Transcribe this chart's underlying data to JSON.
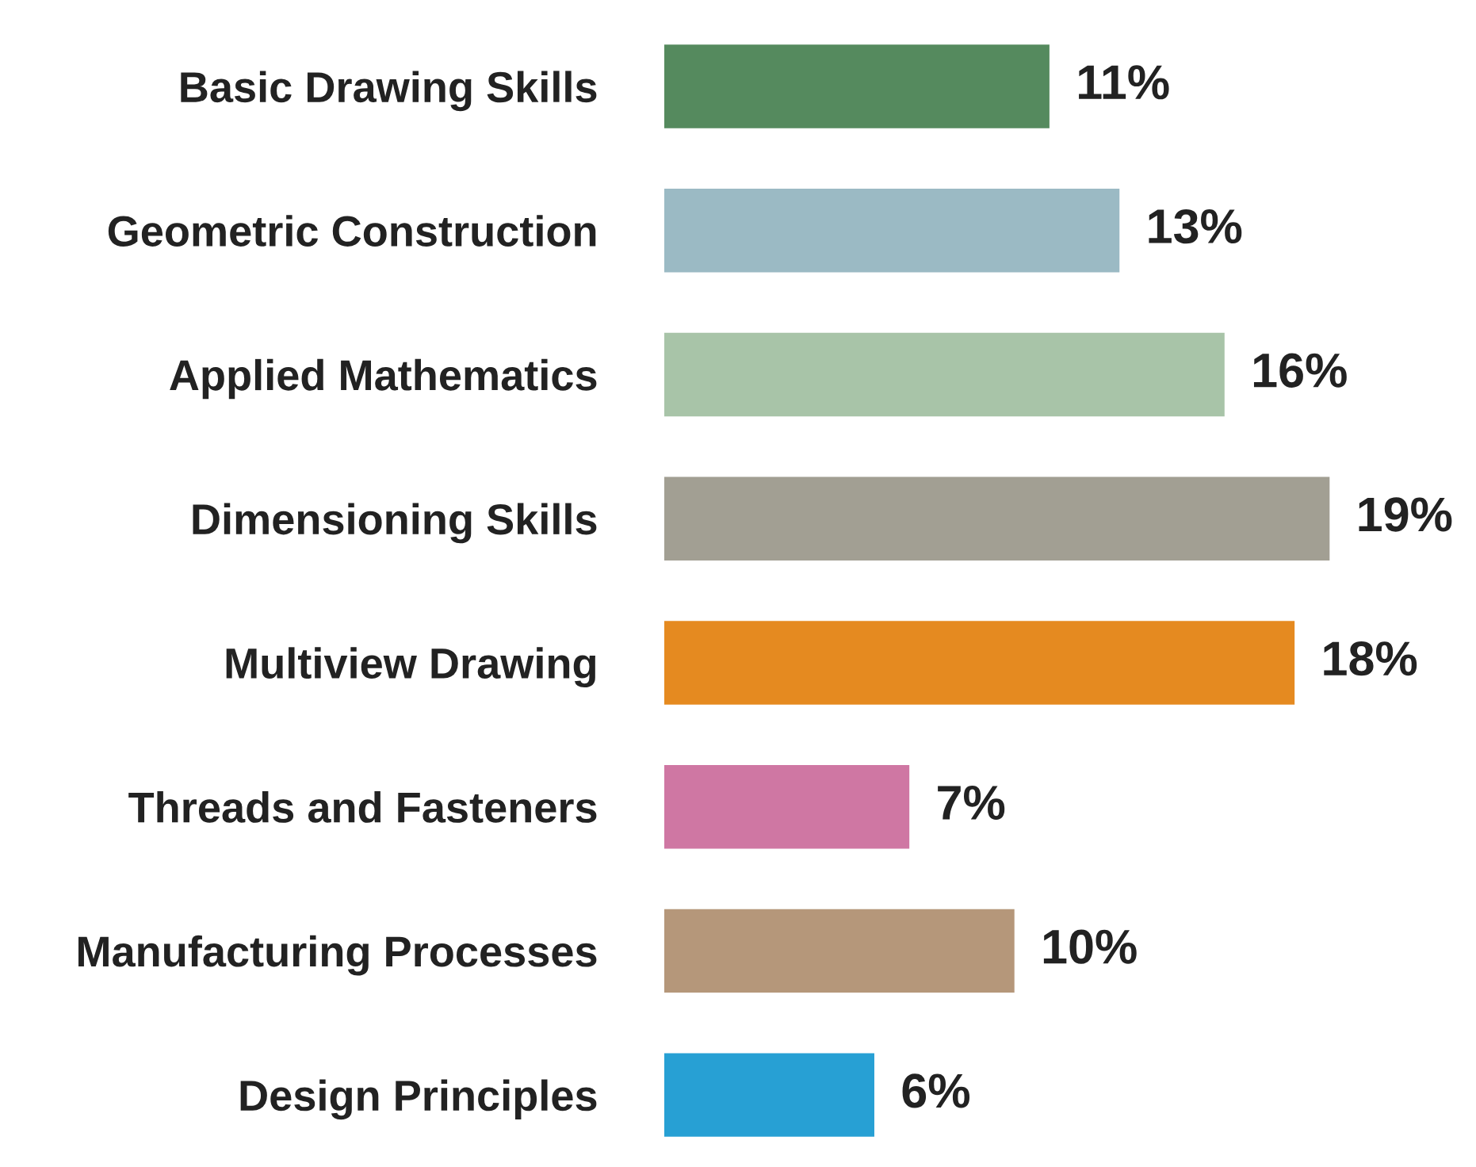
{
  "chart_data": {
    "type": "bar",
    "orientation": "horizontal",
    "categories": [
      "Basic Drawing Skills",
      "Geometric Construction",
      "Applied Mathematics",
      "Dimensioning Skills",
      "Multiview Drawing",
      "Threads and Fasteners",
      "Manufacturing Processes",
      "Design Principles"
    ],
    "values": [
      11,
      13,
      16,
      19,
      18,
      7,
      10,
      6
    ],
    "colors": [
      "#558a5e",
      "#9bbac4",
      "#a8c4a8",
      "#a29f93",
      "#e58a20",
      "#cf77a3",
      "#b5977a",
      "#27a0d4"
    ],
    "value_labels": [
      "11%",
      "13%",
      "16%",
      "19%",
      "18%",
      "7%",
      "10%",
      "6%"
    ],
    "grid": false,
    "legend": false,
    "tick_labels": "y"
  }
}
